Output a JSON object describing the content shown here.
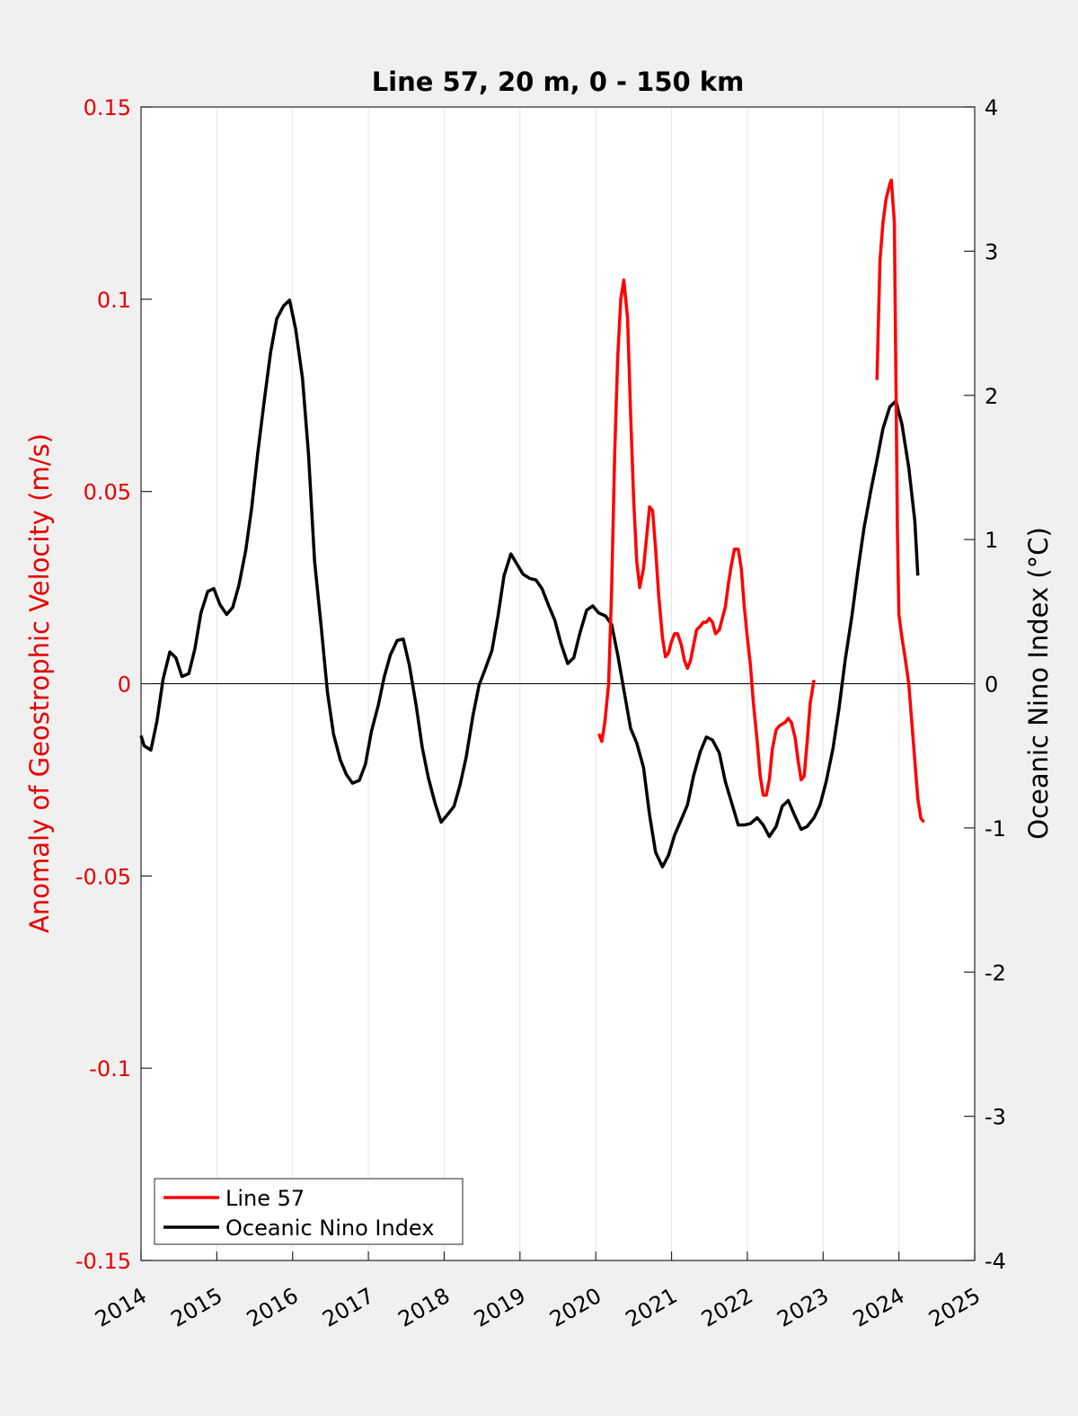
{
  "chart_data": {
    "type": "line",
    "title": "Line 57, 20 m, 0 - 150 km",
    "ylabel_left": "Anomaly of Geostrophic Velocity (m/s)",
    "ylabel_right": "Oceanic Nino Index (°C)",
    "xlim": [
      2014,
      2025
    ],
    "ylim_left": [
      -0.15,
      0.15
    ],
    "ylim_right": [
      -4,
      4
    ],
    "x_ticks": [
      "2014",
      "2015",
      "2016",
      "2017",
      "2018",
      "2019",
      "2020",
      "2021",
      "2022",
      "2023",
      "2024",
      "2025"
    ],
    "y_left_ticks": [
      "-0.15",
      "-0.1",
      "-0.05",
      "0",
      "0.05",
      "0.1",
      "0.15"
    ],
    "y_right_ticks": [
      "-4",
      "-3",
      "-2",
      "-1",
      "0",
      "1",
      "2",
      "3",
      "4"
    ],
    "grid": "vertical only",
    "zero_line": true,
    "legend_position": "bottom-left",
    "colors": {
      "line57": "#ff0000",
      "oni": "#000000",
      "left_axis": "#e60000"
    },
    "series": [
      {
        "name": "Line 57",
        "axis": "left",
        "segments": [
          [
            [
              2020.04,
              -0.013
            ],
            [
              2020.08,
              -0.015
            ],
            [
              2020.12,
              -0.01
            ],
            [
              2020.17,
              0.0
            ],
            [
              2020.21,
              0.025
            ],
            [
              2020.25,
              0.06
            ],
            [
              2020.29,
              0.085
            ],
            [
              2020.33,
              0.1
            ],
            [
              2020.37,
              0.105
            ],
            [
              2020.42,
              0.095
            ],
            [
              2020.46,
              0.07
            ],
            [
              2020.5,
              0.048
            ],
            [
              2020.54,
              0.032
            ],
            [
              2020.58,
              0.025
            ],
            [
              2020.63,
              0.03
            ],
            [
              2020.67,
              0.038
            ],
            [
              2020.71,
              0.046
            ],
            [
              2020.75,
              0.045
            ],
            [
              2020.79,
              0.035
            ],
            [
              2020.83,
              0.023
            ],
            [
              2020.88,
              0.012
            ],
            [
              2020.92,
              0.007
            ],
            [
              2020.96,
              0.008
            ],
            [
              2021.0,
              0.011
            ],
            [
              2021.04,
              0.013
            ],
            [
              2021.08,
              0.013
            ],
            [
              2021.13,
              0.01
            ],
            [
              2021.17,
              0.006
            ],
            [
              2021.21,
              0.004
            ],
            [
              2021.25,
              0.006
            ],
            [
              2021.29,
              0.01
            ],
            [
              2021.33,
              0.014
            ],
            [
              2021.38,
              0.015
            ],
            [
              2021.42,
              0.016
            ],
            [
              2021.46,
              0.016
            ],
            [
              2021.5,
              0.017
            ],
            [
              2021.54,
              0.016
            ],
            [
              2021.58,
              0.013
            ],
            [
              2021.63,
              0.014
            ],
            [
              2021.67,
              0.017
            ],
            [
              2021.71,
              0.02
            ],
            [
              2021.75,
              0.026
            ],
            [
              2021.79,
              0.031
            ],
            [
              2021.83,
              0.035
            ],
            [
              2021.88,
              0.035
            ],
            [
              2021.92,
              0.03
            ],
            [
              2021.96,
              0.02
            ],
            [
              2022.0,
              0.012
            ],
            [
              2022.04,
              0.005
            ],
            [
              2022.08,
              -0.005
            ],
            [
              2022.13,
              -0.015
            ],
            [
              2022.17,
              -0.024
            ],
            [
              2022.21,
              -0.029
            ],
            [
              2022.25,
              -0.029
            ],
            [
              2022.29,
              -0.025
            ],
            [
              2022.33,
              -0.017
            ],
            [
              2022.38,
              -0.012
            ],
            [
              2022.42,
              -0.011
            ],
            [
              2022.46,
              -0.0105
            ],
            [
              2022.5,
              -0.01
            ],
            [
              2022.54,
              -0.009
            ],
            [
              2022.58,
              -0.01
            ],
            [
              2022.63,
              -0.014
            ],
            [
              2022.67,
              -0.02
            ],
            [
              2022.71,
              -0.025
            ],
            [
              2022.75,
              -0.024
            ],
            [
              2022.79,
              -0.015
            ],
            [
              2022.83,
              -0.005
            ],
            [
              2022.88,
              0.001
            ]
          ],
          [
            [
              2023.71,
              0.079
            ],
            [
              2023.75,
              0.11
            ],
            [
              2023.79,
              0.12
            ],
            [
              2023.83,
              0.126
            ],
            [
              2023.88,
              0.13
            ],
            [
              2023.9,
              0.131
            ],
            [
              2023.94,
              0.12
            ],
            [
              2023.96,
              0.08
            ],
            [
              2023.98,
              0.04
            ],
            [
              2024.0,
              0.018
            ],
            [
              2024.04,
              0.012
            ],
            [
              2024.08,
              0.007
            ],
            [
              2024.13,
              0.0
            ],
            [
              2024.17,
              -0.01
            ],
            [
              2024.21,
              -0.02
            ],
            [
              2024.25,
              -0.03
            ],
            [
              2024.29,
              -0.035
            ],
            [
              2024.33,
              -0.036
            ]
          ]
        ]
      },
      {
        "name": "Oceanic Nino Index",
        "axis": "right",
        "values": [
          [
            2014.0,
            -0.36
          ],
          [
            2014.04,
            -0.43
          ],
          [
            2014.13,
            -0.46
          ],
          [
            2014.21,
            -0.26
          ],
          [
            2014.29,
            0.03
          ],
          [
            2014.38,
            0.22
          ],
          [
            2014.46,
            0.18
          ],
          [
            2014.54,
            0.05
          ],
          [
            2014.63,
            0.07
          ],
          [
            2014.71,
            0.24
          ],
          [
            2014.79,
            0.49
          ],
          [
            2014.88,
            0.64
          ],
          [
            2014.96,
            0.66
          ],
          [
            2015.04,
            0.55
          ],
          [
            2015.13,
            0.48
          ],
          [
            2015.21,
            0.53
          ],
          [
            2015.29,
            0.68
          ],
          [
            2015.38,
            0.92
          ],
          [
            2015.46,
            1.22
          ],
          [
            2015.54,
            1.6
          ],
          [
            2015.63,
            1.98
          ],
          [
            2015.71,
            2.3
          ],
          [
            2015.79,
            2.53
          ],
          [
            2015.88,
            2.62
          ],
          [
            2015.96,
            2.66
          ],
          [
            2016.04,
            2.46
          ],
          [
            2016.13,
            2.12
          ],
          [
            2016.21,
            1.59
          ],
          [
            2016.29,
            0.85
          ],
          [
            2016.38,
            0.38
          ],
          [
            2016.46,
            -0.06
          ],
          [
            2016.54,
            -0.35
          ],
          [
            2016.63,
            -0.53
          ],
          [
            2016.71,
            -0.63
          ],
          [
            2016.79,
            -0.69
          ],
          [
            2016.88,
            -0.67
          ],
          [
            2016.96,
            -0.56
          ],
          [
            2017.04,
            -0.33
          ],
          [
            2017.13,
            -0.15
          ],
          [
            2017.21,
            0.05
          ],
          [
            2017.29,
            0.2
          ],
          [
            2017.38,
            0.3
          ],
          [
            2017.46,
            0.31
          ],
          [
            2017.54,
            0.13
          ],
          [
            2017.63,
            -0.15
          ],
          [
            2017.71,
            -0.44
          ],
          [
            2017.79,
            -0.65
          ],
          [
            2017.88,
            -0.83
          ],
          [
            2017.96,
            -0.96
          ],
          [
            2018.04,
            -0.91
          ],
          [
            2018.13,
            -0.85
          ],
          [
            2018.21,
            -0.7
          ],
          [
            2018.29,
            -0.51
          ],
          [
            2018.38,
            -0.22
          ],
          [
            2018.46,
            -0.01
          ],
          [
            2018.54,
            0.1
          ],
          [
            2018.63,
            0.23
          ],
          [
            2018.71,
            0.47
          ],
          [
            2018.79,
            0.75
          ],
          [
            2018.88,
            0.9
          ],
          [
            2018.96,
            0.83
          ],
          [
            2019.04,
            0.76
          ],
          [
            2019.13,
            0.73
          ],
          [
            2019.21,
            0.72
          ],
          [
            2019.29,
            0.66
          ],
          [
            2019.38,
            0.54
          ],
          [
            2019.46,
            0.44
          ],
          [
            2019.54,
            0.28
          ],
          [
            2019.63,
            0.14
          ],
          [
            2019.71,
            0.18
          ],
          [
            2019.79,
            0.35
          ],
          [
            2019.88,
            0.51
          ],
          [
            2019.96,
            0.54
          ],
          [
            2020.04,
            0.49
          ],
          [
            2020.13,
            0.47
          ],
          [
            2020.21,
            0.41
          ],
          [
            2020.29,
            0.2
          ],
          [
            2020.38,
            -0.07
          ],
          [
            2020.46,
            -0.31
          ],
          [
            2020.54,
            -0.41
          ],
          [
            2020.63,
            -0.58
          ],
          [
            2020.71,
            -0.91
          ],
          [
            2020.79,
            -1.17
          ],
          [
            2020.88,
            -1.27
          ],
          [
            2020.96,
            -1.19
          ],
          [
            2021.04,
            -1.05
          ],
          [
            2021.13,
            -0.94
          ],
          [
            2021.21,
            -0.84
          ],
          [
            2021.29,
            -0.64
          ],
          [
            2021.38,
            -0.47
          ],
          [
            2021.46,
            -0.37
          ],
          [
            2021.54,
            -0.39
          ],
          [
            2021.63,
            -0.48
          ],
          [
            2021.71,
            -0.68
          ],
          [
            2021.79,
            -0.82
          ],
          [
            2021.88,
            -0.98
          ],
          [
            2021.96,
            -0.98
          ],
          [
            2022.04,
            -0.97
          ],
          [
            2022.13,
            -0.93
          ],
          [
            2022.21,
            -0.98
          ],
          [
            2022.29,
            -1.06
          ],
          [
            2022.38,
            -0.99
          ],
          [
            2022.46,
            -0.85
          ],
          [
            2022.54,
            -0.81
          ],
          [
            2022.63,
            -0.92
          ],
          [
            2022.71,
            -1.01
          ],
          [
            2022.79,
            -0.99
          ],
          [
            2022.88,
            -0.93
          ],
          [
            2022.96,
            -0.84
          ],
          [
            2023.04,
            -0.68
          ],
          [
            2023.13,
            -0.45
          ],
          [
            2023.21,
            -0.17
          ],
          [
            2023.29,
            0.16
          ],
          [
            2023.38,
            0.47
          ],
          [
            2023.46,
            0.79
          ],
          [
            2023.54,
            1.08
          ],
          [
            2023.63,
            1.34
          ],
          [
            2023.71,
            1.55
          ],
          [
            2023.79,
            1.77
          ],
          [
            2023.88,
            1.92
          ],
          [
            2023.96,
            1.96
          ],
          [
            2024.04,
            1.8
          ],
          [
            2024.13,
            1.5
          ],
          [
            2024.21,
            1.13
          ],
          [
            2024.25,
            0.75
          ]
        ]
      }
    ],
    "legend": [
      "Line 57",
      "Oceanic Nino Index"
    ]
  }
}
